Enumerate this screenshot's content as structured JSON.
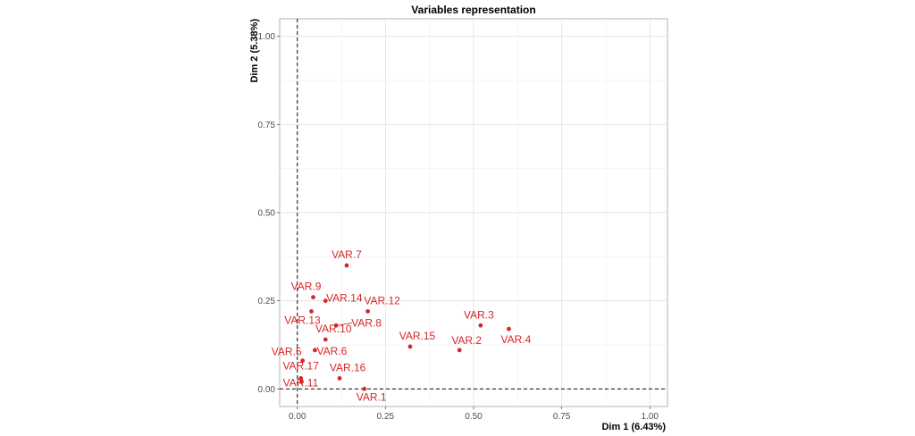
{
  "chart_data": {
    "type": "scatter",
    "title": "Variables representation",
    "xlabel": "Dim 1 (6.43%)",
    "ylabel": "Dim 2 (5.38%)",
    "xlim": [
      -0.05,
      1.05
    ],
    "ylim": [
      -0.05,
      1.05
    ],
    "x_ticks": [
      "0.00",
      "0.25",
      "0.50",
      "0.75",
      "1.00"
    ],
    "y_ticks": [
      "0.00",
      "0.25",
      "0.50",
      "0.75",
      "1.00"
    ],
    "grid": true,
    "reference_lines": {
      "x": 0,
      "y": 0,
      "style": "dashed"
    },
    "point_color": "#d62728",
    "points": [
      {
        "label": "VAR.1",
        "x": 0.19,
        "y": 0.0
      },
      {
        "label": "VAR.2",
        "x": 0.46,
        "y": 0.11
      },
      {
        "label": "VAR.3",
        "x": 0.52,
        "y": 0.18
      },
      {
        "label": "VAR.4",
        "x": 0.6,
        "y": 0.17
      },
      {
        "label": "VAR.5",
        "x": 0.015,
        "y": 0.08
      },
      {
        "label": "VAR.6",
        "x": 0.05,
        "y": 0.11
      },
      {
        "label": "VAR.7",
        "x": 0.14,
        "y": 0.35
      },
      {
        "label": "VAR.8",
        "x": 0.11,
        "y": 0.18
      },
      {
        "label": "VAR.9",
        "x": 0.045,
        "y": 0.26
      },
      {
        "label": "VAR.10",
        "x": 0.08,
        "y": 0.14
      },
      {
        "label": "VAR.11",
        "x": 0.012,
        "y": 0.02
      },
      {
        "label": "VAR.12",
        "x": 0.2,
        "y": 0.22
      },
      {
        "label": "VAR.13",
        "x": 0.04,
        "y": 0.22
      },
      {
        "label": "VAR.14",
        "x": 0.08,
        "y": 0.25
      },
      {
        "label": "VAR.15",
        "x": 0.32,
        "y": 0.12
      },
      {
        "label": "VAR.16",
        "x": 0.12,
        "y": 0.03
      },
      {
        "label": "VAR.17",
        "x": 0.01,
        "y": 0.03
      }
    ]
  }
}
